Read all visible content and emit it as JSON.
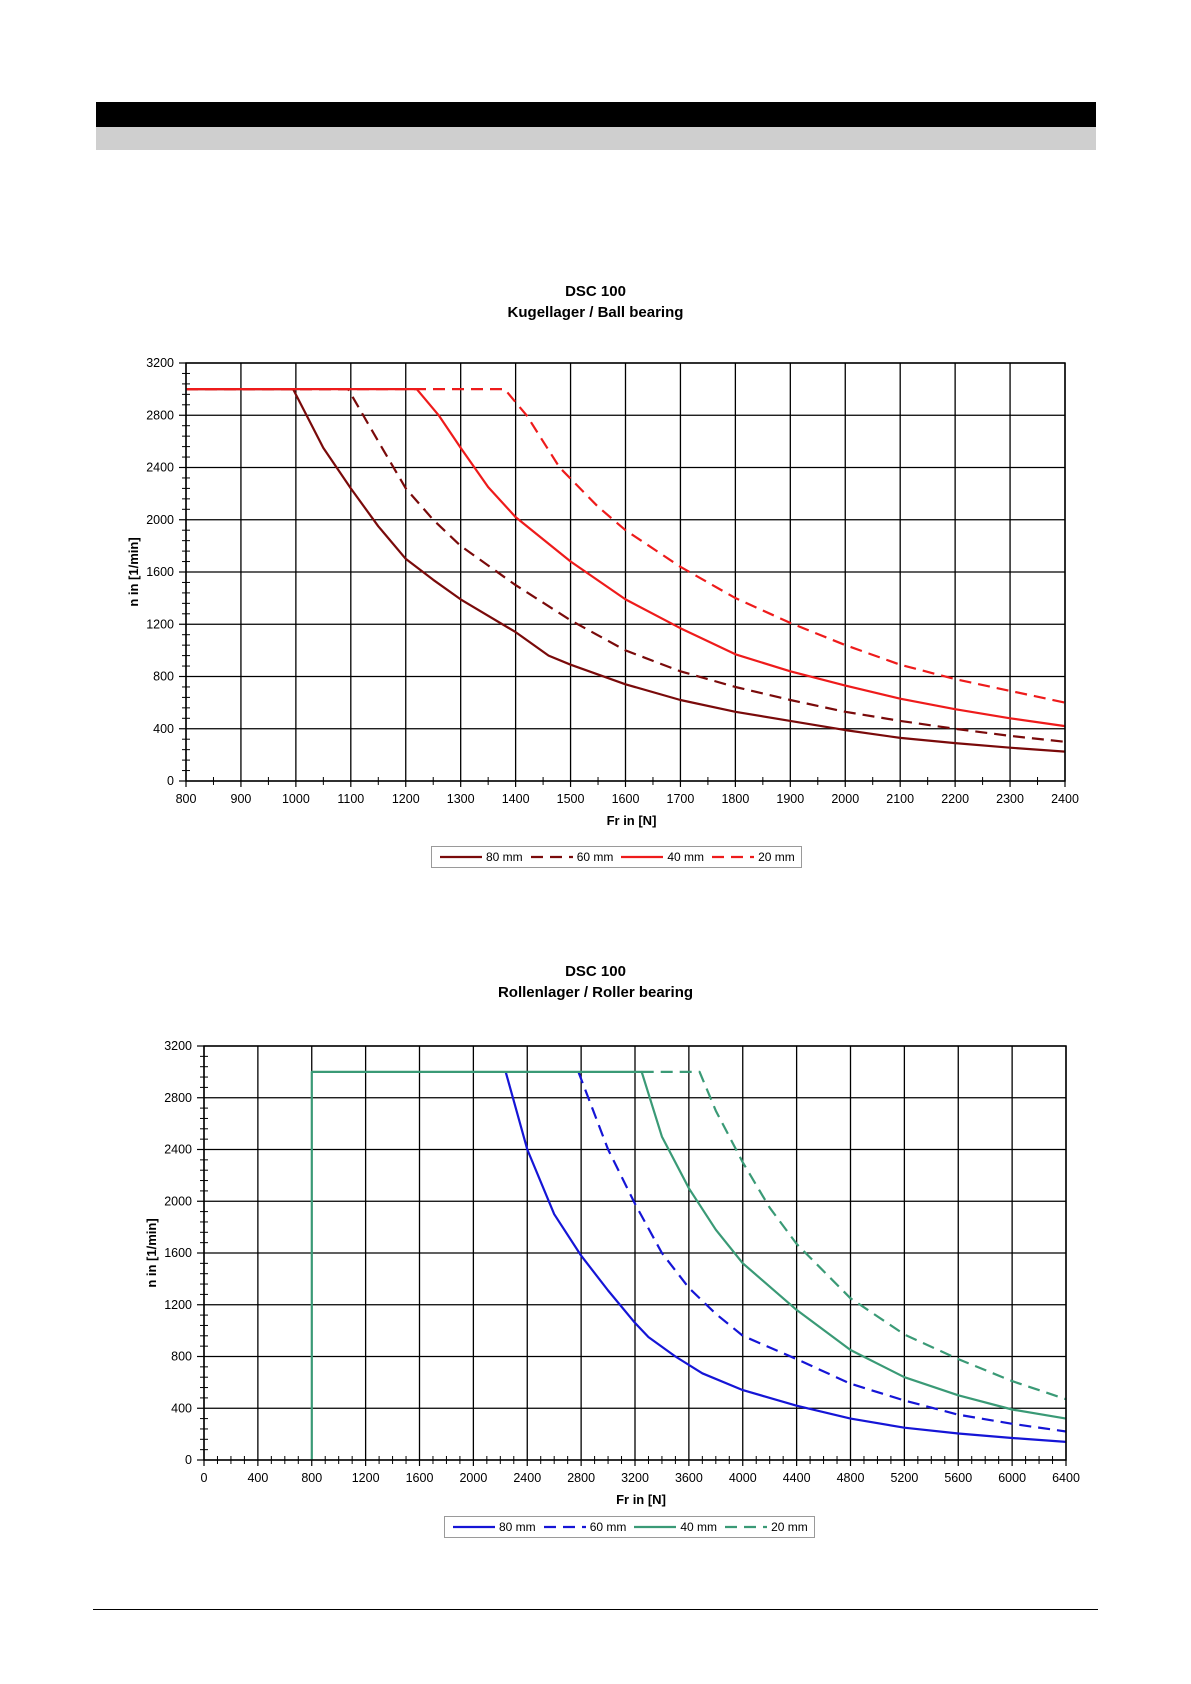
{
  "charts": [
    {
      "id": "ball",
      "title": "DSC 100",
      "subtitle": "Kugellager / Ball bearing",
      "chart_data": {
        "type": "line",
        "title": "DSC 100",
        "subtitle": "Kugellager / Ball bearing",
        "xlabel": "Fr in [N]",
        "ylabel": "n in [1/min]",
        "xlim": [
          800,
          2400
        ],
        "ylim": [
          0,
          3200
        ],
        "xticks": [
          800,
          900,
          1000,
          1100,
          1200,
          1300,
          1400,
          1500,
          1600,
          1700,
          1800,
          1900,
          2000,
          2100,
          2200,
          2300,
          2400
        ],
        "yticks": [
          0,
          400,
          800,
          1200,
          1600,
          2000,
          2400,
          2800,
          3200
        ],
        "grid": true,
        "legend_position": "bottom",
        "series": [
          {
            "name": "80 mm",
            "color": "#7a0a0a",
            "dash": false,
            "points": [
              [
                800,
                3000
              ],
              [
                995,
                3000
              ],
              [
                1050,
                2550
              ],
              [
                1100,
                2240
              ],
              [
                1150,
                1950
              ],
              [
                1200,
                1700
              ],
              [
                1250,
                1540
              ],
              [
                1300,
                1390
              ],
              [
                1400,
                1140
              ],
              [
                1460,
                960
              ],
              [
                1500,
                890
              ],
              [
                1600,
                740
              ],
              [
                1700,
                620
              ],
              [
                1800,
                530
              ],
              [
                1900,
                460
              ],
              [
                2000,
                390
              ],
              [
                2100,
                330
              ],
              [
                2200,
                290
              ],
              [
                2300,
                255
              ],
              [
                2400,
                225
              ]
            ]
          },
          {
            "name": "60 mm",
            "color": "#7a0a0a",
            "dash": true,
            "points": [
              [
                800,
                3000
              ],
              [
                1095,
                3000
              ],
              [
                1150,
                2600
              ],
              [
                1200,
                2240
              ],
              [
                1250,
                2000
              ],
              [
                1300,
                1800
              ],
              [
                1400,
                1500
              ],
              [
                1500,
                1230
              ],
              [
                1600,
                1000
              ],
              [
                1700,
                840
              ],
              [
                1800,
                720
              ],
              [
                1900,
                620
              ],
              [
                2000,
                530
              ],
              [
                2100,
                460
              ],
              [
                2200,
                400
              ],
              [
                2300,
                345
              ],
              [
                2400,
                300
              ]
            ]
          },
          {
            "name": "40 mm",
            "color": "#ee1b1b",
            "dash": false,
            "points": [
              [
                800,
                3000
              ],
              [
                1220,
                3000
              ],
              [
                1260,
                2800
              ],
              [
                1300,
                2550
              ],
              [
                1350,
                2250
              ],
              [
                1400,
                2020
              ],
              [
                1500,
                1680
              ],
              [
                1600,
                1390
              ],
              [
                1700,
                1170
              ],
              [
                1800,
                970
              ],
              [
                1900,
                840
              ],
              [
                2000,
                730
              ],
              [
                2100,
                630
              ],
              [
                2200,
                550
              ],
              [
                2300,
                480
              ],
              [
                2400,
                420
              ]
            ]
          },
          {
            "name": "20 mm",
            "color": "#ee1b1b",
            "dash": true,
            "points": [
              [
                800,
                3000
              ],
              [
                1380,
                3000
              ],
              [
                1420,
                2800
              ],
              [
                1480,
                2400
              ],
              [
                1550,
                2100
              ],
              [
                1600,
                1920
              ],
              [
                1700,
                1640
              ],
              [
                1800,
                1400
              ],
              [
                1900,
                1210
              ],
              [
                2000,
                1040
              ],
              [
                2100,
                890
              ],
              [
                2200,
                780
              ],
              [
                2300,
                690
              ],
              [
                2400,
                600
              ]
            ]
          }
        ]
      },
      "legend": [
        "80 mm",
        "60 mm",
        "40 mm",
        "20 mm"
      ]
    },
    {
      "id": "roller",
      "title": "DSC 100",
      "subtitle": "Rollenlager / Roller bearing",
      "chart_data": {
        "type": "line",
        "title": "DSC 100",
        "subtitle": "Rollenlager / Roller bearing",
        "xlabel": "Fr in [N]",
        "ylabel": "n in [1/min]",
        "xlim": [
          0,
          6400
        ],
        "ylim": [
          0,
          3200
        ],
        "xticks": [
          0,
          400,
          800,
          1200,
          1600,
          2000,
          2400,
          2800,
          3200,
          3600,
          4000,
          4400,
          4800,
          5200,
          5600,
          6000,
          6400
        ],
        "yticks": [
          0,
          400,
          800,
          1200,
          1600,
          2000,
          2400,
          2800,
          3200
        ],
        "grid": true,
        "legend_position": "bottom",
        "series": [
          {
            "name": "80 mm",
            "color": "#1515d6",
            "dash": false,
            "points": [
              [
                2240,
                3000
              ],
              [
                2400,
                2400
              ],
              [
                2600,
                1900
              ],
              [
                2800,
                1580
              ],
              [
                3000,
                1310
              ],
              [
                3200,
                1060
              ],
              [
                3300,
                950
              ],
              [
                3500,
                800
              ],
              [
                3700,
                670
              ],
              [
                4000,
                540
              ],
              [
                4400,
                420
              ],
              [
                4800,
                320
              ],
              [
                5200,
                250
              ],
              [
                5600,
                205
              ],
              [
                6000,
                170
              ],
              [
                6400,
                140
              ]
            ]
          },
          {
            "name": "60 mm",
            "color": "#1515d6",
            "dash": true,
            "points": [
              [
                2780,
                3000
              ],
              [
                3000,
                2400
              ],
              [
                3200,
                1980
              ],
              [
                3400,
                1600
              ],
              [
                3600,
                1330
              ],
              [
                3800,
                1130
              ],
              [
                4000,
                960
              ],
              [
                4400,
                780
              ],
              [
                4800,
                590
              ],
              [
                5200,
                460
              ],
              [
                5600,
                350
              ],
              [
                6000,
                280
              ],
              [
                6400,
                220
              ]
            ]
          },
          {
            "name": "40 mm",
            "color": "#3a9a76",
            "dash": false,
            "points": [
              [
                800,
                0
              ],
              [
                800,
                3000
              ],
              [
                3250,
                3000
              ],
              [
                3400,
                2500
              ],
              [
                3600,
                2100
              ],
              [
                3800,
                1780
              ],
              [
                4000,
                1520
              ],
              [
                4400,
                1160
              ],
              [
                4800,
                850
              ],
              [
                5200,
                640
              ],
              [
                5600,
                500
              ],
              [
                6000,
                390
              ],
              [
                6400,
                320
              ]
            ]
          },
          {
            "name": "20 mm",
            "color": "#3a9a76",
            "dash": true,
            "points": [
              [
                3250,
                3000
              ],
              [
                3680,
                3000
              ],
              [
                3800,
                2700
              ],
              [
                4000,
                2300
              ],
              [
                4200,
                1950
              ],
              [
                4400,
                1670
              ],
              [
                4800,
                1250
              ],
              [
                5200,
                970
              ],
              [
                5600,
                780
              ],
              [
                6000,
                610
              ],
              [
                6400,
                470
              ]
            ]
          }
        ]
      },
      "legend": [
        "80 mm",
        "60 mm",
        "40 mm",
        "20 mm"
      ]
    }
  ]
}
